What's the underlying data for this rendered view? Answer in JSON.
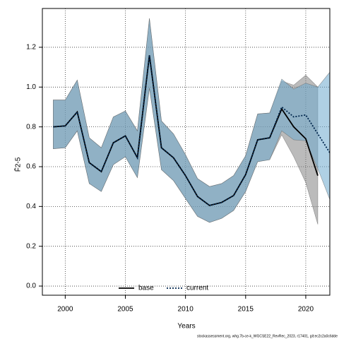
{
  "chart_data": {
    "type": "line",
    "xlabel": "Years",
    "ylabel": "F̄2-5",
    "footnote": "stockassessment.org, whg.7b-ce-k_WGCSE22_RevRec_2023, r17401, git:ec2c2a0c6dde",
    "x": [
      1999,
      2000,
      2001,
      2002,
      2003,
      2004,
      2005,
      2006,
      2007,
      2008,
      2009,
      2010,
      2011,
      2012,
      2013,
      2014,
      2015,
      2016,
      2017,
      2018,
      2019,
      2020,
      2021,
      2022
    ],
    "series": [
      {
        "name": "base",
        "color": "#000000",
        "band_color": "rgba(120,120,120,0.5)",
        "dash": false,
        "values": [
          0.8,
          0.805,
          0.875,
          0.62,
          0.575,
          0.72,
          0.755,
          0.645,
          1.16,
          0.695,
          0.645,
          0.555,
          0.45,
          0.405,
          0.42,
          0.455,
          0.56,
          0.735,
          0.745,
          0.89,
          0.8,
          0.74,
          0.555,
          null
        ],
        "upper": [
          0.935,
          0.935,
          1.035,
          0.745,
          0.695,
          0.85,
          0.88,
          0.78,
          1.345,
          0.83,
          0.765,
          0.66,
          0.54,
          0.5,
          0.515,
          0.555,
          0.655,
          0.865,
          0.87,
          1.03,
          1.01,
          1.06,
          1.0,
          null
        ],
        "lower": [
          0.69,
          0.695,
          0.78,
          0.515,
          0.475,
          0.61,
          0.65,
          0.545,
          0.995,
          0.585,
          0.53,
          0.44,
          0.35,
          0.32,
          0.34,
          0.38,
          0.475,
          0.625,
          0.635,
          0.76,
          0.65,
          0.52,
          0.31,
          null
        ]
      },
      {
        "name": "current",
        "color": "#00264d",
        "band_color": "rgba(110,170,205,0.55)",
        "dash": true,
        "values": [
          0.8,
          0.805,
          0.875,
          0.62,
          0.575,
          0.72,
          0.755,
          0.645,
          1.16,
          0.695,
          0.645,
          0.555,
          0.45,
          0.405,
          0.42,
          0.455,
          0.56,
          0.735,
          0.745,
          0.9,
          0.85,
          0.86,
          0.765,
          0.67
        ],
        "upper": [
          0.935,
          0.935,
          1.035,
          0.745,
          0.695,
          0.85,
          0.88,
          0.78,
          1.345,
          0.83,
          0.765,
          0.66,
          0.54,
          0.5,
          0.515,
          0.555,
          0.655,
          0.865,
          0.87,
          1.04,
          0.99,
          1.02,
          1.0,
          1.075
        ],
        "lower": [
          0.69,
          0.695,
          0.78,
          0.515,
          0.475,
          0.61,
          0.65,
          0.545,
          0.995,
          0.585,
          0.53,
          0.44,
          0.35,
          0.32,
          0.34,
          0.38,
          0.475,
          0.625,
          0.635,
          0.78,
          0.735,
          0.73,
          0.59,
          0.435
        ]
      }
    ],
    "xlim": [
      1998.1,
      2022
    ],
    "xticks": [
      2000,
      2005,
      2010,
      2015,
      2020
    ],
    "ylim": [
      -0.046,
      1.395
    ],
    "yticks": [
      {
        "value": 0,
        "label": "0.0"
      },
      0.2,
      0.4,
      0.6,
      0.8,
      {
        "value": 1,
        "label": "1.0"
      },
      1.2
    ],
    "grid": true,
    "legend": "bottom"
  }
}
